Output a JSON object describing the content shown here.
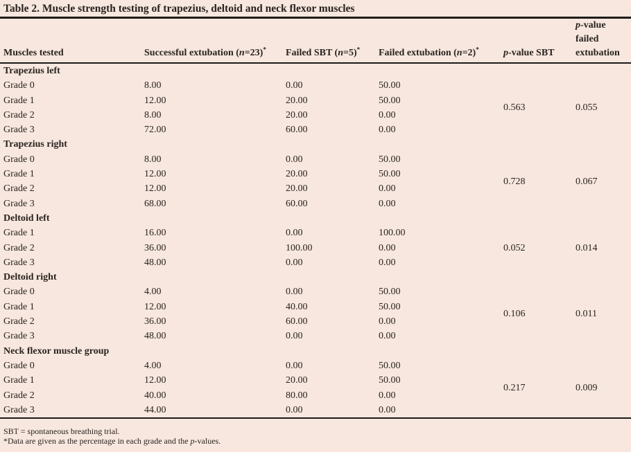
{
  "title": "Table 2. Muscle strength testing of trapezius, deltoid and neck flexor muscles",
  "header": {
    "muscles": "Muscles tested",
    "successful": {
      "pre": "Successful extubation (",
      "n": "n",
      "post": "=23)",
      "sup": "*"
    },
    "failed_sbt": {
      "pre": "Failed SBT (",
      "n": "n",
      "post": "=5)",
      "sup": "*"
    },
    "failed_ext": {
      "pre": "Failed extubation (",
      "n": "n",
      "post": "=2)",
      "sup": "*"
    },
    "p_sbt": {
      "p": "p",
      "post": "-value SBT"
    },
    "p_failed": {
      "p": "p",
      "line1_post": "-value",
      "line2": "failed",
      "line3": "extubation"
    }
  },
  "sections": [
    {
      "name": "Trapezius left",
      "p_sbt": "0.563",
      "p_failed": "0.055",
      "rows": [
        {
          "grade": "Grade 0",
          "success": "8.00",
          "sbt": "0.00",
          "failed": "50.00"
        },
        {
          "grade": "Grade 1",
          "success": "12.00",
          "sbt": "20.00",
          "failed": "50.00"
        },
        {
          "grade": "Grade 2",
          "success": "8.00",
          "sbt": "20.00",
          "failed": "0.00"
        },
        {
          "grade": "Grade 3",
          "success": "72.00",
          "sbt": "60.00",
          "failed": "0.00"
        }
      ]
    },
    {
      "name": "Trapezius right",
      "p_sbt": "0.728",
      "p_failed": "0.067",
      "rows": [
        {
          "grade": "Grade 0",
          "success": "8.00",
          "sbt": "0.00",
          "failed": "50.00"
        },
        {
          "grade": "Grade 1",
          "success": "12.00",
          "sbt": "20.00",
          "failed": "50.00"
        },
        {
          "grade": "Grade 2",
          "success": "12.00",
          "sbt": "20.00",
          "failed": "0.00"
        },
        {
          "grade": "Grade 3",
          "success": "68.00",
          "sbt": "60.00",
          "failed": "0.00"
        }
      ]
    },
    {
      "name": "Deltoid left",
      "p_sbt": "0.052",
      "p_failed": "0.014",
      "rows": [
        {
          "grade": "Grade 1",
          "success": "16.00",
          "sbt": "0.00",
          "failed": "100.00"
        },
        {
          "grade": "Grade 2",
          "success": "36.00",
          "sbt": "100.00",
          "failed": "0.00"
        },
        {
          "grade": "Grade 3",
          "success": "48.00",
          "sbt": "0.00",
          "failed": "0.00"
        }
      ]
    },
    {
      "name": "Deltoid right",
      "p_sbt": "0.106",
      "p_failed": "0.011",
      "rows": [
        {
          "grade": "Grade 0",
          "success": "4.00",
          "sbt": "0.00",
          "failed": "50.00"
        },
        {
          "grade": "Grade 1",
          "success": "12.00",
          "sbt": "40.00",
          "failed": "50.00"
        },
        {
          "grade": "Grade 2",
          "success": "36.00",
          "sbt": "60.00",
          "failed": "0.00"
        },
        {
          "grade": "Grade 3",
          "success": "48.00",
          "sbt": "0.00",
          "failed": "0.00"
        }
      ]
    },
    {
      "name": "Neck flexor muscle group",
      "p_sbt": "0.217",
      "p_failed": "0.009",
      "rows": [
        {
          "grade": "Grade 0",
          "success": "4.00",
          "sbt": "0.00",
          "failed": "50.00"
        },
        {
          "grade": "Grade 1",
          "success": "12.00",
          "sbt": "20.00",
          "failed": "50.00"
        },
        {
          "grade": "Grade 2",
          "success": "40.00",
          "sbt": "80.00",
          "failed": "0.00"
        },
        {
          "grade": "Grade 3",
          "success": "44.00",
          "sbt": "0.00",
          "failed": "0.00"
        }
      ]
    }
  ],
  "footnotes": {
    "sbt_definition": "SBT = spontaneous breathing trial.",
    "data_note": {
      "pre": "*Data are given as the percentage in each grade and the ",
      "p": "p",
      "post": "-values."
    }
  },
  "colors": {
    "background": "#f7e7de",
    "text": "#29231f",
    "rule": "#1c1a19"
  }
}
